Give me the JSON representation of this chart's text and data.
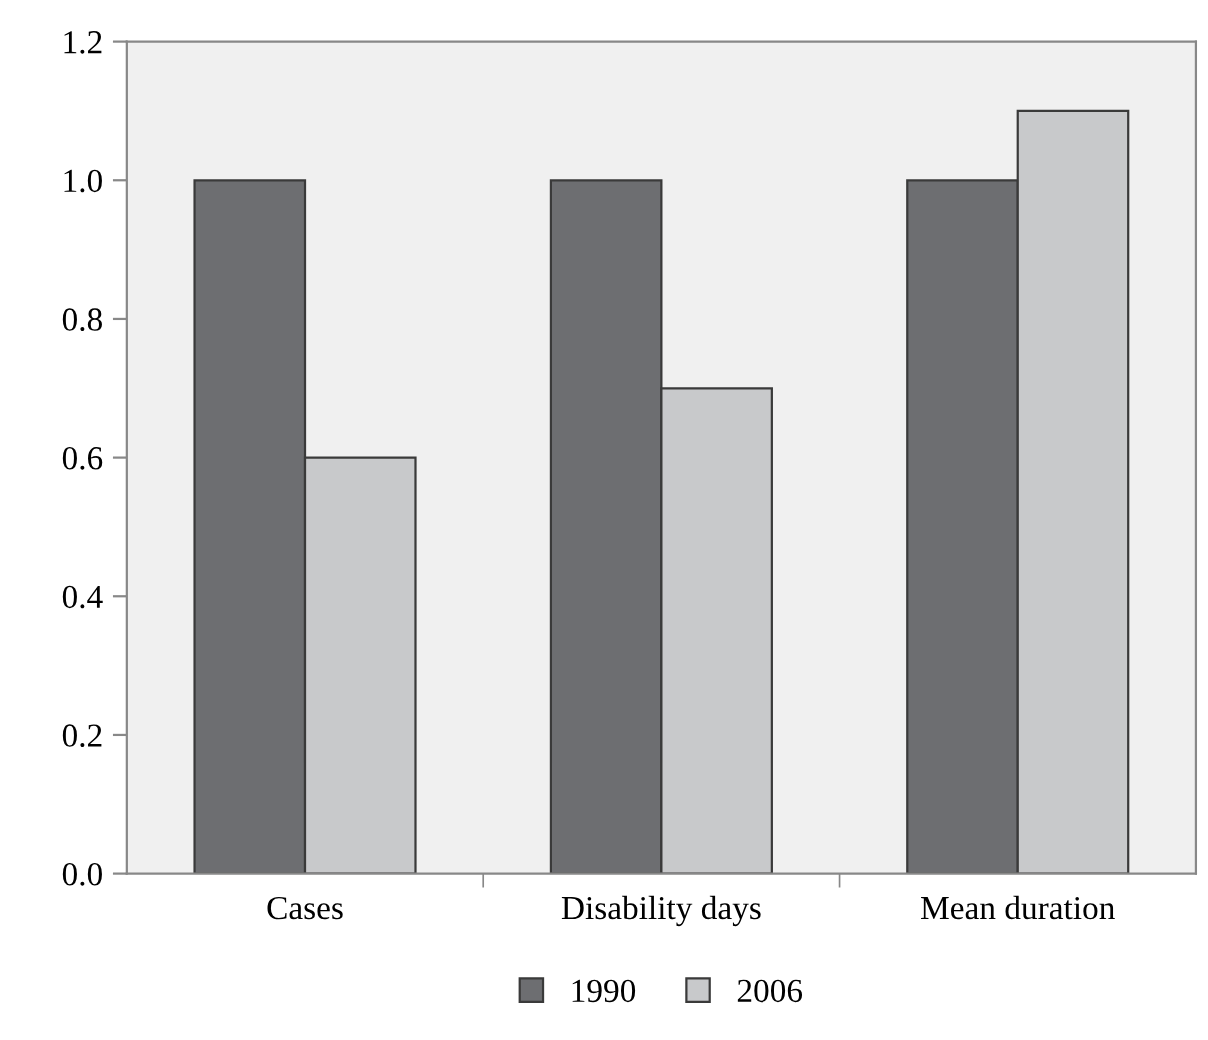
{
  "chart_data": {
    "type": "bar",
    "categories": [
      "Cases",
      "Disability days",
      "Mean duration"
    ],
    "series": [
      {
        "name": "1990",
        "color": "#6d6e71",
        "values": [
          1.0,
          1.0,
          1.0
        ]
      },
      {
        "name": "2006",
        "color": "#c8c9cb",
        "values": [
          0.6,
          0.7,
          1.1
        ]
      }
    ],
    "ylim": [
      0,
      1.2
    ],
    "yticks": [
      {
        "value": 0,
        "label": "0.0"
      },
      {
        "value": 0.2,
        "label": "0.2"
      },
      {
        "value": 0.4,
        "label": "0.4"
      },
      {
        "value": 0.6,
        "label": "0.6"
      },
      {
        "value": 0.8,
        "label": "0.8"
      },
      {
        "value": 1.0,
        "label": "1.0"
      },
      {
        "value": 1.2,
        "label": "1.2"
      }
    ],
    "grid": false,
    "legend": "bottom"
  }
}
